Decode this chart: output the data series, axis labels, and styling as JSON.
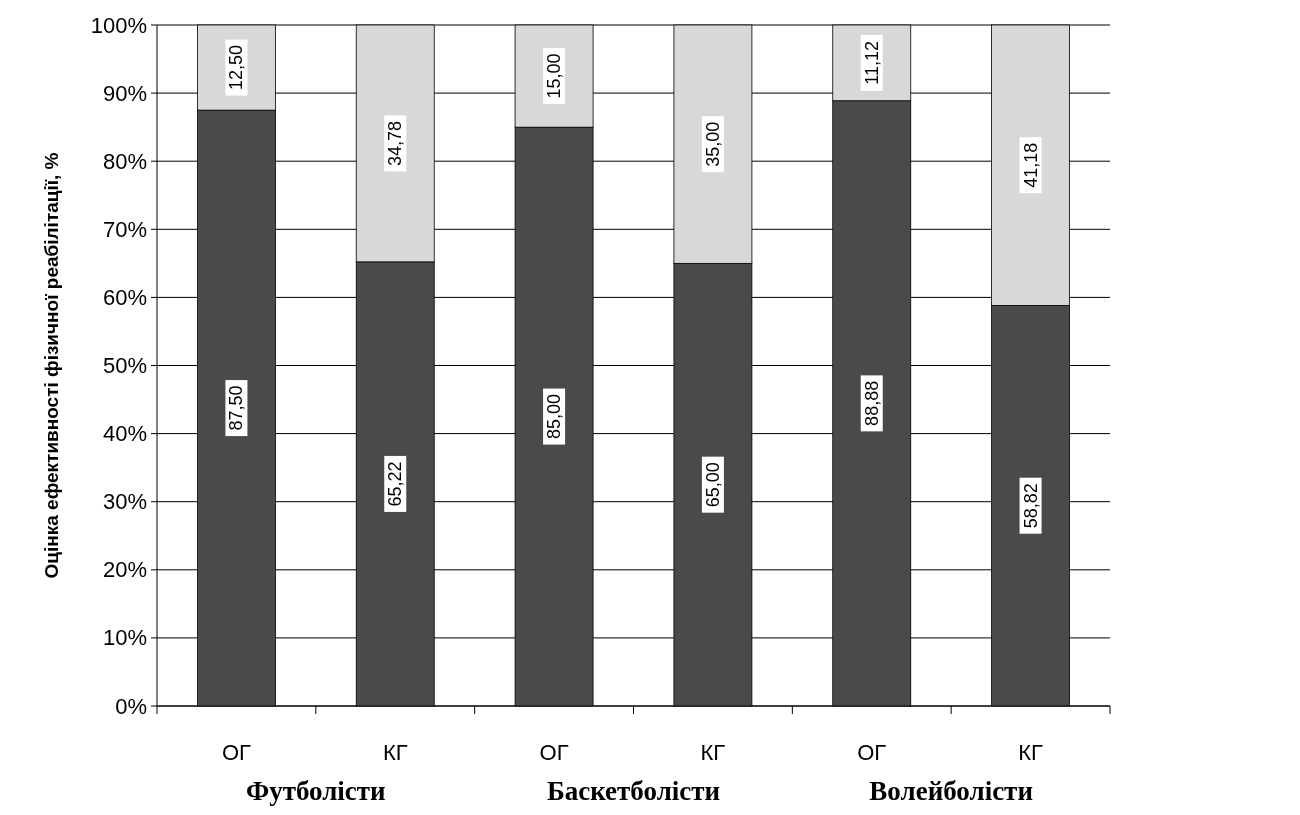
{
  "chart_data": {
    "type": "bar",
    "stacked": true,
    "ylabel": "Оцінка ефективності фізичної реабілітації, %",
    "categories": [
      "ОГ",
      "КГ",
      "ОГ",
      "КГ",
      "ОГ",
      "КГ"
    ],
    "series": [
      {
        "color": "#4a4a4a",
        "values": [
          87.5,
          65.22,
          85,
          65,
          88.88,
          58.82
        ],
        "value_labels": [
          "87,50",
          "65,22",
          "85,00",
          "65,00",
          "88,88",
          "58,82"
        ]
      },
      {
        "color": "#d8d8d8",
        "values": [
          12.5,
          34.78,
          15,
          35,
          11.12,
          41.18
        ],
        "value_labels": [
          "12,50",
          "34,78",
          "15,00",
          "35,00",
          "11,12",
          "41,18"
        ]
      }
    ],
    "ylim": [
      0,
      100
    ],
    "yticks": [
      {
        "value": 0,
        "label": "0%"
      },
      {
        "value": 10,
        "label": "10%"
      },
      {
        "value": 20,
        "label": "20%"
      },
      {
        "value": 30,
        "label": "30%"
      },
      {
        "value": 40,
        "label": "40%"
      },
      {
        "value": 50,
        "label": "50%"
      },
      {
        "value": 60,
        "label": "60%"
      },
      {
        "value": 70,
        "label": "70%"
      },
      {
        "value": 80,
        "label": "80%"
      },
      {
        "value": 90,
        "label": "90%"
      },
      {
        "value": 100,
        "label": "100%"
      }
    ],
    "grid": "y",
    "annotations": [
      "Футболісти",
      "Баскетболісти",
      "Волейболісти"
    ]
  }
}
